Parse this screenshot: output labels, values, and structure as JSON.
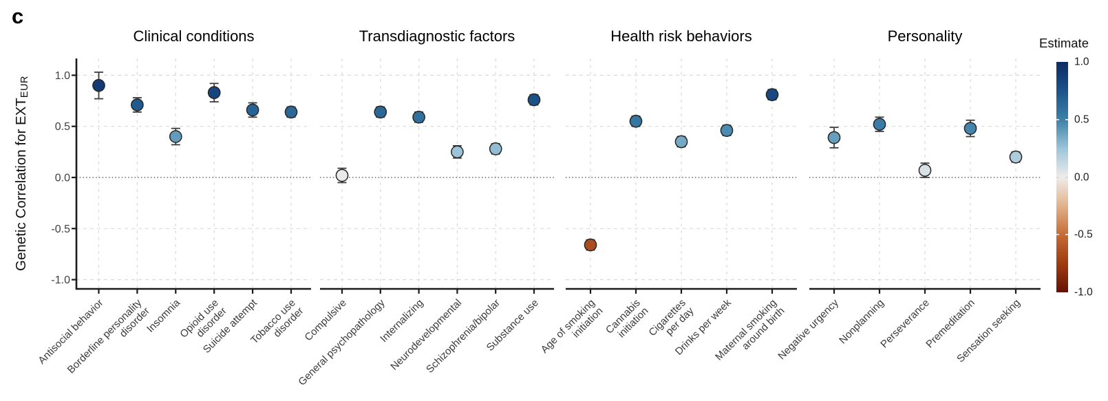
{
  "panel_label": "c",
  "y_axis": {
    "label_main": "Genetic Correlation for EXT",
    "label_sub": "EUR",
    "tick_values": [
      1.0,
      0.5,
      0.0,
      -0.5,
      -1.0
    ],
    "tick_labels": [
      "1.0",
      "0.5",
      "0.0",
      "-0.5",
      "-1.0"
    ]
  },
  "legend": {
    "title": "Estimate",
    "tick_values": [
      1.0,
      0.5,
      0.0,
      -0.5,
      -1.0
    ],
    "tick_labels": [
      "1.0",
      "0.5",
      "0.0",
      "-0.5",
      "-1.0"
    ],
    "palette_stops": [
      {
        "value": 1.0,
        "color": "#0d2a63"
      },
      {
        "value": 0.75,
        "color": "#1c538a"
      },
      {
        "value": 0.5,
        "color": "#3d80a8"
      },
      {
        "value": 0.25,
        "color": "#9cc4d9"
      },
      {
        "value": 0.0,
        "color": "#efecea"
      },
      {
        "value": -0.25,
        "color": "#e2b28c"
      },
      {
        "value": -0.5,
        "color": "#c66b35"
      },
      {
        "value": -0.75,
        "color": "#9e3c10"
      },
      {
        "value": -1.0,
        "color": "#671106"
      }
    ]
  },
  "style_colors": {
    "grid": "#d9d9d9",
    "zero_line": "#1a1a1a",
    "axis": "#1a1a1a",
    "error_bar": "#3d3d3d",
    "point_stroke": "#262626",
    "y_tick_label": "#3f3f3f",
    "x_tick_label": "#3a3a3a",
    "facet_title": "#000000"
  },
  "chart_data": {
    "type": "scatter",
    "subtype": "point-range with diverging color scale",
    "ylabel": "Genetic Correlation for EXT_EUR",
    "ylim": [
      -1.15,
      1.15
    ],
    "zero_reference_line": 0.0,
    "color_legend_title": "Estimate",
    "color_range": [
      -1.0,
      1.0
    ],
    "grid": "dashed horizontal at ±0.5 and ±1.0, dashed vertical per category, dotted line at 0",
    "facets": [
      {
        "title": "Clinical conditions",
        "points": [
          {
            "label": "Antisocial behavior",
            "lines": [
              "Antisocial behavior"
            ],
            "estimate": 0.9,
            "ci": 0.13
          },
          {
            "label": "Borderline personality disorder",
            "lines": [
              "Borderline personality",
              "disorder"
            ],
            "estimate": 0.71,
            "ci": 0.07
          },
          {
            "label": "Insomnia",
            "lines": [
              "Insomnia"
            ],
            "estimate": 0.4,
            "ci": 0.08
          },
          {
            "label": "Opioid use disorder",
            "lines": [
              "Opioid use",
              "disorder"
            ],
            "estimate": 0.83,
            "ci": 0.09
          },
          {
            "label": "Suicide attempt",
            "lines": [
              "Suicide attempt"
            ],
            "estimate": 0.66,
            "ci": 0.07
          },
          {
            "label": "Tobacco use disorder",
            "lines": [
              "Tobacco use",
              "disorder"
            ],
            "estimate": 0.64,
            "ci": 0.05
          }
        ]
      },
      {
        "title": "Transdiagnostic factors",
        "points": [
          {
            "label": "Compulsive",
            "lines": [
              "Compulsive"
            ],
            "estimate": 0.02,
            "ci": 0.07
          },
          {
            "label": "General psychopathology",
            "lines": [
              "General psychopathology"
            ],
            "estimate": 0.64,
            "ci": 0.05
          },
          {
            "label": "Internalizing",
            "lines": [
              "Internalizing"
            ],
            "estimate": 0.59,
            "ci": 0.05
          },
          {
            "label": "Neurodevelopmental",
            "lines": [
              "Neurodevelopmental"
            ],
            "estimate": 0.25,
            "ci": 0.06
          },
          {
            "label": "Schizophrenia/bipolar",
            "lines": [
              "Schizophrenia/bipolar"
            ],
            "estimate": 0.28,
            "ci": 0.05
          },
          {
            "label": "Substance use",
            "lines": [
              "Substance use"
            ],
            "estimate": 0.76,
            "ci": 0.05
          }
        ]
      },
      {
        "title": "Health risk behaviors",
        "points": [
          {
            "label": "Age of smoking initiation",
            "lines": [
              "Age of smoking",
              "initiation"
            ],
            "estimate": -0.66,
            "ci": 0.05
          },
          {
            "label": "Cannabis initiation",
            "lines": [
              "Cannabis",
              "initiation"
            ],
            "estimate": 0.55,
            "ci": 0.05
          },
          {
            "label": "Cigarettes per day",
            "lines": [
              "Cigarettes",
              "per day"
            ],
            "estimate": 0.35,
            "ci": 0.05
          },
          {
            "label": "Drinks per week",
            "lines": [
              "Drinks per week"
            ],
            "estimate": 0.46,
            "ci": 0.05
          },
          {
            "label": "Maternal smoking around birth",
            "lines": [
              "Maternal smoking",
              "around birth"
            ],
            "estimate": 0.81,
            "ci": 0.05
          }
        ]
      },
      {
        "title": "Personality",
        "points": [
          {
            "label": "Negative urgency",
            "lines": [
              "Negative urgency"
            ],
            "estimate": 0.39,
            "ci": 0.1
          },
          {
            "label": "Nonplanning",
            "lines": [
              "Nonplanning"
            ],
            "estimate": 0.52,
            "ci": 0.07
          },
          {
            "label": "Perseverance",
            "lines": [
              "Perseverance"
            ],
            "estimate": 0.07,
            "ci": 0.07
          },
          {
            "label": "Premeditation",
            "lines": [
              "Premeditation"
            ],
            "estimate": 0.48,
            "ci": 0.08
          },
          {
            "label": "Sensation seeking",
            "lines": [
              "Sensation seeking"
            ],
            "estimate": 0.2,
            "ci": 0.05
          }
        ]
      }
    ]
  }
}
